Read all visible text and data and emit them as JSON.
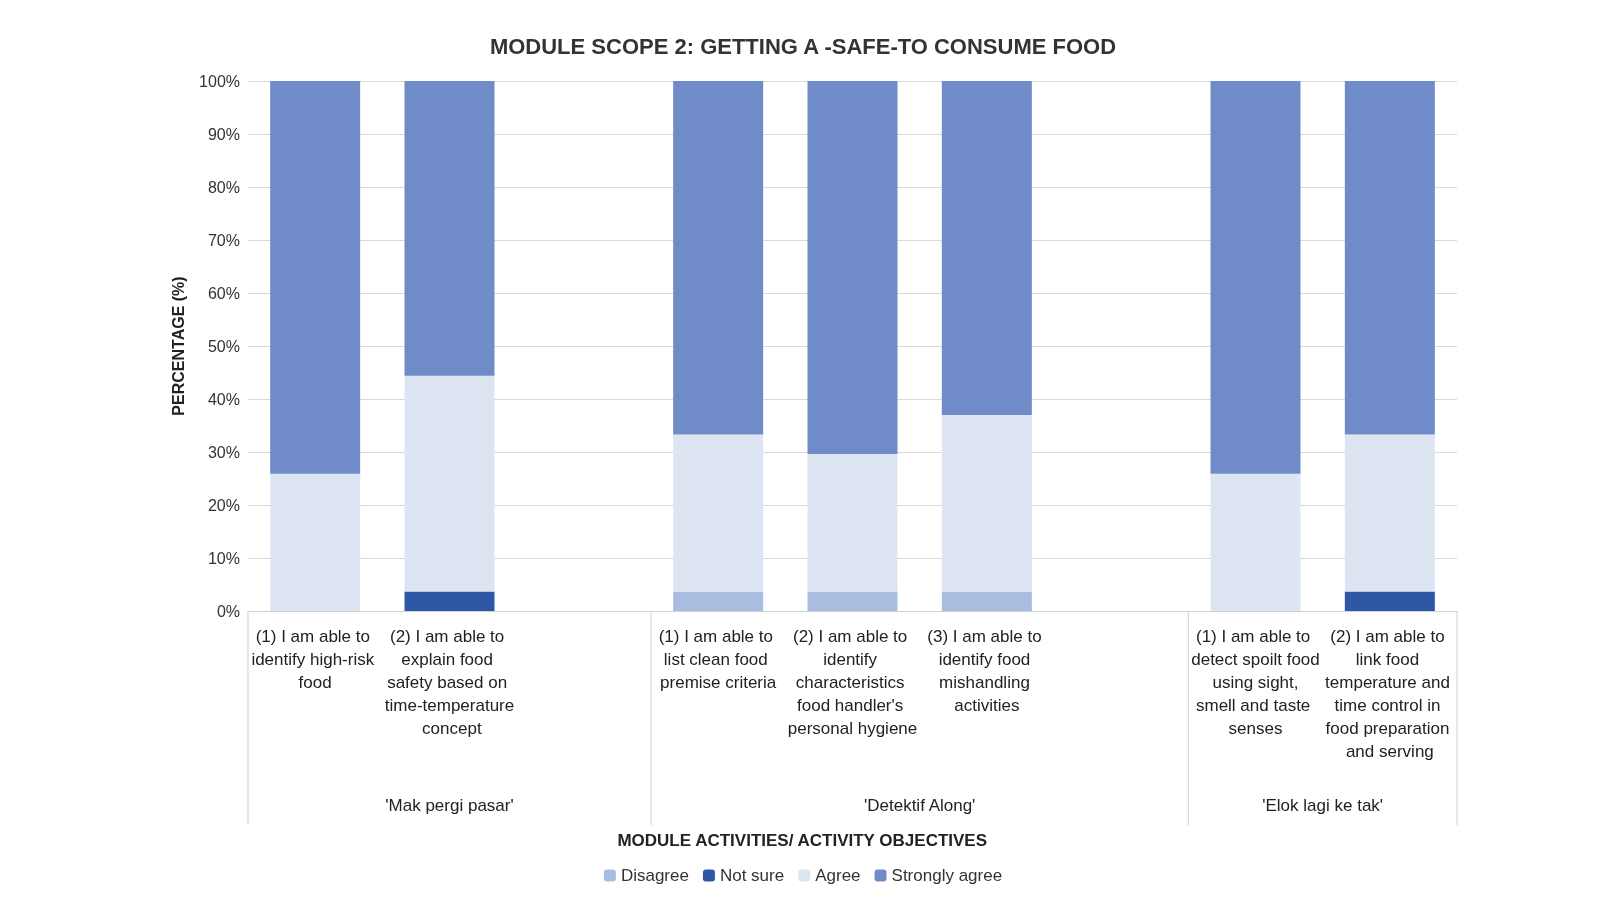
{
  "chart_data": {
    "type": "bar",
    "title": "MODULE SCOPE 2: GETTING A -SAFE-TO CONSUME FOOD",
    "xlabel": "MODULE ACTIVITIES/ ACTIVITY OBJECTIVES",
    "ylabel": "PERCENTAGE (%)",
    "categories": [
      "(1) I am able to identify high-risk food",
      "(2) I am able to explain food safety based on time-temperature concept",
      null,
      "(1) I am able to list clean food premise criteria",
      "(2) I am able to identify characteristics food handler's personal hygiene",
      "(3) I am able to identify food mishandling activities",
      null,
      "(1) I am able to detect spoilt food using sight, smell and taste senses",
      "(2) I am able to link food temperature and time control in food preparation and serving"
    ],
    "stacked": true,
    "series": [
      {
        "name": "Disagree",
        "color": "#a9bde0",
        "values": [
          0,
          0,
          null,
          3.7,
          3.7,
          3.7,
          null,
          0,
          0
        ]
      },
      {
        "name": "Not sure",
        "color": "#2e58a6",
        "values": [
          0,
          3.7,
          null,
          0,
          0,
          0,
          null,
          0,
          3.7
        ]
      },
      {
        "name": "Agree",
        "color": "#dde5f3",
        "values": [
          25.9,
          40.7,
          null,
          29.6,
          25.9,
          33.3,
          null,
          25.9,
          29.6
        ]
      },
      {
        "name": "Strongly agree",
        "color": "#6f8cc8",
        "values": [
          74.1,
          55.6,
          null,
          66.7,
          70.4,
          63,
          null,
          74.1,
          66.7
        ]
      }
    ],
    "annotations": [
      "'Mak pergi pasar'",
      "'Detektif Along'",
      "'Elok lagi ke tak'"
    ],
    "ylim": [
      0,
      100
    ],
    "yticks": [
      {
        "value": 0,
        "label": "0%"
      },
      {
        "value": 10,
        "label": "10%"
      },
      {
        "value": 20,
        "label": "20%"
      },
      {
        "value": 30,
        "label": "30%"
      },
      {
        "value": 40,
        "label": "40%"
      },
      {
        "value": 50,
        "label": "50%"
      },
      {
        "value": 60,
        "label": "60%"
      },
      {
        "value": 70,
        "label": "70%"
      },
      {
        "value": 80,
        "label": "80%"
      },
      {
        "value": 90,
        "label": "90%"
      },
      {
        "value": 100,
        "label": "100%"
      }
    ],
    "grid": "y",
    "legend": "bottom"
  }
}
